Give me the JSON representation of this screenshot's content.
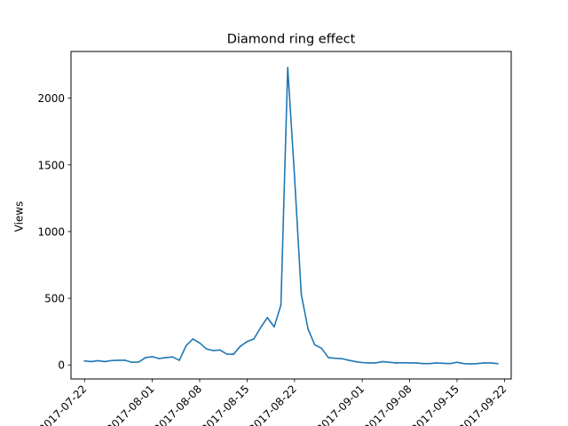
{
  "chart_data": {
    "type": "line",
    "title": "Diamond ring effect",
    "xlabel": "",
    "ylabel": "Views",
    "xlim": [
      "2017-07-20",
      "2017-09-23"
    ],
    "ylim": [
      -105,
      2350
    ],
    "grid": false,
    "color": "#1f77b4",
    "x_ticks": [
      "2017-07-22",
      "2017-08-01",
      "2017-08-08",
      "2017-08-15",
      "2017-08-22",
      "2017-09-01",
      "2017-09-08",
      "2017-09-15",
      "2017-09-22"
    ],
    "y_ticks": [
      0,
      500,
      1000,
      1500,
      2000
    ],
    "series": [
      {
        "x": [
          "2017-07-22",
          "2017-07-23",
          "2017-07-24",
          "2017-07-25",
          "2017-07-26",
          "2017-07-27",
          "2017-07-28",
          "2017-07-29",
          "2017-07-30",
          "2017-07-31",
          "2017-08-01",
          "2017-08-02",
          "2017-08-03",
          "2017-08-04",
          "2017-08-05",
          "2017-08-06",
          "2017-08-07",
          "2017-08-08",
          "2017-08-09",
          "2017-08-10",
          "2017-08-11",
          "2017-08-12",
          "2017-08-13",
          "2017-08-14",
          "2017-08-15",
          "2017-08-16",
          "2017-08-17",
          "2017-08-18",
          "2017-08-19",
          "2017-08-20",
          "2017-08-21",
          "2017-08-22",
          "2017-08-23",
          "2017-08-24",
          "2017-08-25",
          "2017-08-26",
          "2017-08-27",
          "2017-08-28",
          "2017-08-29",
          "2017-08-30",
          "2017-08-31",
          "2017-09-01",
          "2017-09-02",
          "2017-09-03",
          "2017-09-04",
          "2017-09-05",
          "2017-09-06",
          "2017-09-07",
          "2017-09-08",
          "2017-09-09",
          "2017-09-10",
          "2017-09-11",
          "2017-09-12",
          "2017-09-13",
          "2017-09-14",
          "2017-09-15",
          "2017-09-16",
          "2017-09-17",
          "2017-09-18",
          "2017-09-19",
          "2017-09-20",
          "2017-09-21"
        ],
        "y": [
          30,
          25,
          32,
          25,
          33,
          35,
          35,
          20,
          22,
          55,
          62,
          48,
          55,
          60,
          35,
          145,
          195,
          165,
          120,
          108,
          112,
          82,
          80,
          140,
          175,
          195,
          280,
          355,
          285,
          450,
          2230,
          1420,
          530,
          270,
          150,
          125,
          55,
          50,
          47,
          35,
          25,
          18,
          15,
          15,
          25,
          20,
          15,
          17,
          15,
          15,
          10,
          10,
          15,
          12,
          10,
          20,
          10,
          8,
          10,
          15,
          15,
          10
        ]
      }
    ]
  }
}
